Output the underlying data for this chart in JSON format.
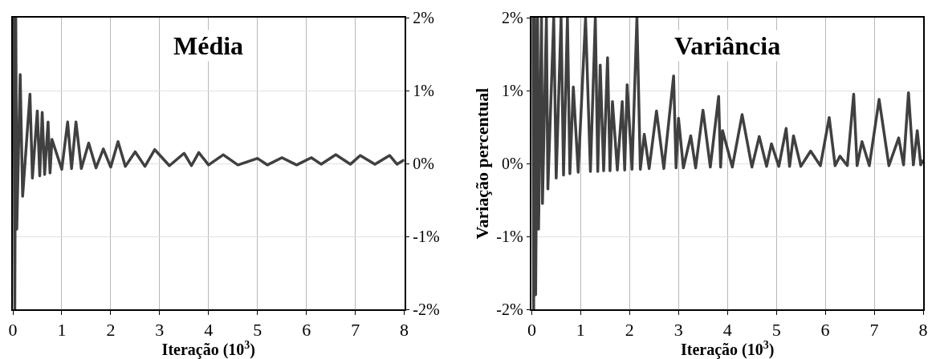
{
  "chart_data": [
    {
      "type": "line",
      "title": "Média",
      "xlabel": "Iteração (10$^{3}$)",
      "color": "#404040",
      "grid": true,
      "marker": "none",
      "line_style": "solid",
      "x": [
        0.02,
        0.04,
        0.06,
        0.08,
        0.15,
        0.2,
        0.35,
        0.4,
        0.5,
        0.55,
        0.6,
        0.65,
        0.72,
        0.76,
        0.8,
        1.0,
        1.12,
        1.2,
        1.29,
        1.4,
        1.55,
        1.7,
        1.85,
        2.0,
        2.15,
        2.3,
        2.5,
        2.7,
        2.9,
        3.2,
        3.5,
        3.65,
        3.8,
        4.0,
        4.3,
        4.6,
        5.0,
        5.2,
        5.5,
        5.8,
        6.1,
        6.3,
        6.6,
        6.9,
        7.1,
        7.4,
        7.7,
        7.85,
        8.0
      ],
      "values": [
        2,
        -2,
        2,
        -0.9,
        1.22,
        -0.45,
        0.95,
        -0.2,
        0.72,
        -0.17,
        0.7,
        -0.15,
        0.57,
        -0.13,
        0.33,
        -0.08,
        0.57,
        -0.07,
        0.57,
        -0.07,
        0.28,
        -0.06,
        0.2,
        -0.05,
        0.3,
        -0.04,
        0.16,
        -0.04,
        0.19,
        -0.03,
        0.14,
        -0.03,
        0.15,
        -0.02,
        0.12,
        -0.02,
        0.07,
        -0.02,
        0.08,
        -0.02,
        0.08,
        -0.01,
        0.12,
        -0.01,
        0.11,
        -0.01,
        0.11,
        -0.01,
        0.05
      ],
      "xlim": [
        0,
        8
      ],
      "xticks": [
        0,
        1,
        2,
        3,
        4,
        5,
        6,
        7,
        8
      ],
      "ylim": [
        -2,
        2
      ],
      "yticks": [
        {
          "value": -2,
          "label": "-2%"
        },
        {
          "value": -1,
          "label": "-1%"
        },
        {
          "value": 0,
          "label": "0%"
        },
        {
          "value": 1,
          "label": "1%"
        },
        {
          "value": 2,
          "label": "2%"
        }
      ]
    },
    {
      "type": "line",
      "title": "Variância",
      "xlabel": "Iteração (10$^{3}$)",
      "ylabel": "Variação percentual",
      "color": "#404040",
      "grid": true,
      "marker": "none",
      "line_style": "solid",
      "x": [
        0.02,
        0.04,
        0.06,
        0.08,
        0.12,
        0.14,
        0.2,
        0.22,
        0.3,
        0.33,
        0.45,
        0.5,
        0.6,
        0.65,
        0.73,
        0.78,
        0.85,
        0.95,
        1.1,
        1.2,
        1.3,
        1.35,
        1.4,
        1.47,
        1.55,
        1.6,
        1.65,
        1.75,
        1.85,
        1.9,
        1.95,
        2.05,
        2.15,
        2.22,
        2.3,
        2.4,
        2.55,
        2.7,
        2.9,
        2.95,
        3.0,
        3.1,
        3.25,
        3.35,
        3.5,
        3.65,
        3.82,
        3.86,
        3.9,
        4.1,
        4.3,
        4.5,
        4.65,
        4.8,
        4.9,
        5.05,
        5.2,
        5.27,
        5.35,
        5.5,
        5.7,
        5.9,
        6.08,
        6.2,
        6.3,
        6.45,
        6.58,
        6.65,
        6.75,
        6.9,
        7.1,
        7.3,
        7.5,
        7.6,
        7.7,
        7.8,
        7.88,
        7.95,
        8.0
      ],
      "values": [
        2,
        -2,
        2,
        -1.8,
        2,
        -0.9,
        2,
        -0.55,
        2,
        -0.35,
        2,
        -0.2,
        2,
        -0.16,
        2,
        -0.14,
        1.05,
        -0.12,
        2,
        -0.11,
        2,
        -0.11,
        1.35,
        -0.1,
        1.45,
        -0.1,
        0.85,
        -0.09,
        0.85,
        -0.09,
        1.08,
        -0.08,
        2,
        -0.08,
        0.4,
        -0.07,
        0.72,
        -0.07,
        1.2,
        -0.06,
        0.62,
        -0.06,
        0.38,
        -0.06,
        0.73,
        -0.05,
        0.92,
        -0.05,
        0.45,
        -0.05,
        0.67,
        -0.05,
        0.37,
        -0.04,
        0.27,
        -0.04,
        0.48,
        -0.04,
        0.38,
        -0.04,
        0.17,
        -0.03,
        0.63,
        -0.03,
        0.1,
        -0.03,
        0.95,
        -0.03,
        0.3,
        -0.03,
        0.88,
        -0.03,
        0.35,
        -0.02,
        0.97,
        -0.02,
        0.45,
        -0.02,
        0.05
      ],
      "xlim": [
        0,
        8
      ],
      "xticks": [
        0,
        1,
        2,
        3,
        4,
        5,
        6,
        7,
        8
      ],
      "ylim": [
        -2,
        2
      ],
      "yticks": [
        {
          "value": -2,
          "label": "-2%"
        },
        {
          "value": -1,
          "label": "-1%"
        },
        {
          "value": 0,
          "label": "0%"
        },
        {
          "value": 1,
          "label": "1%"
        },
        {
          "value": 2,
          "label": "2%"
        }
      ]
    }
  ]
}
